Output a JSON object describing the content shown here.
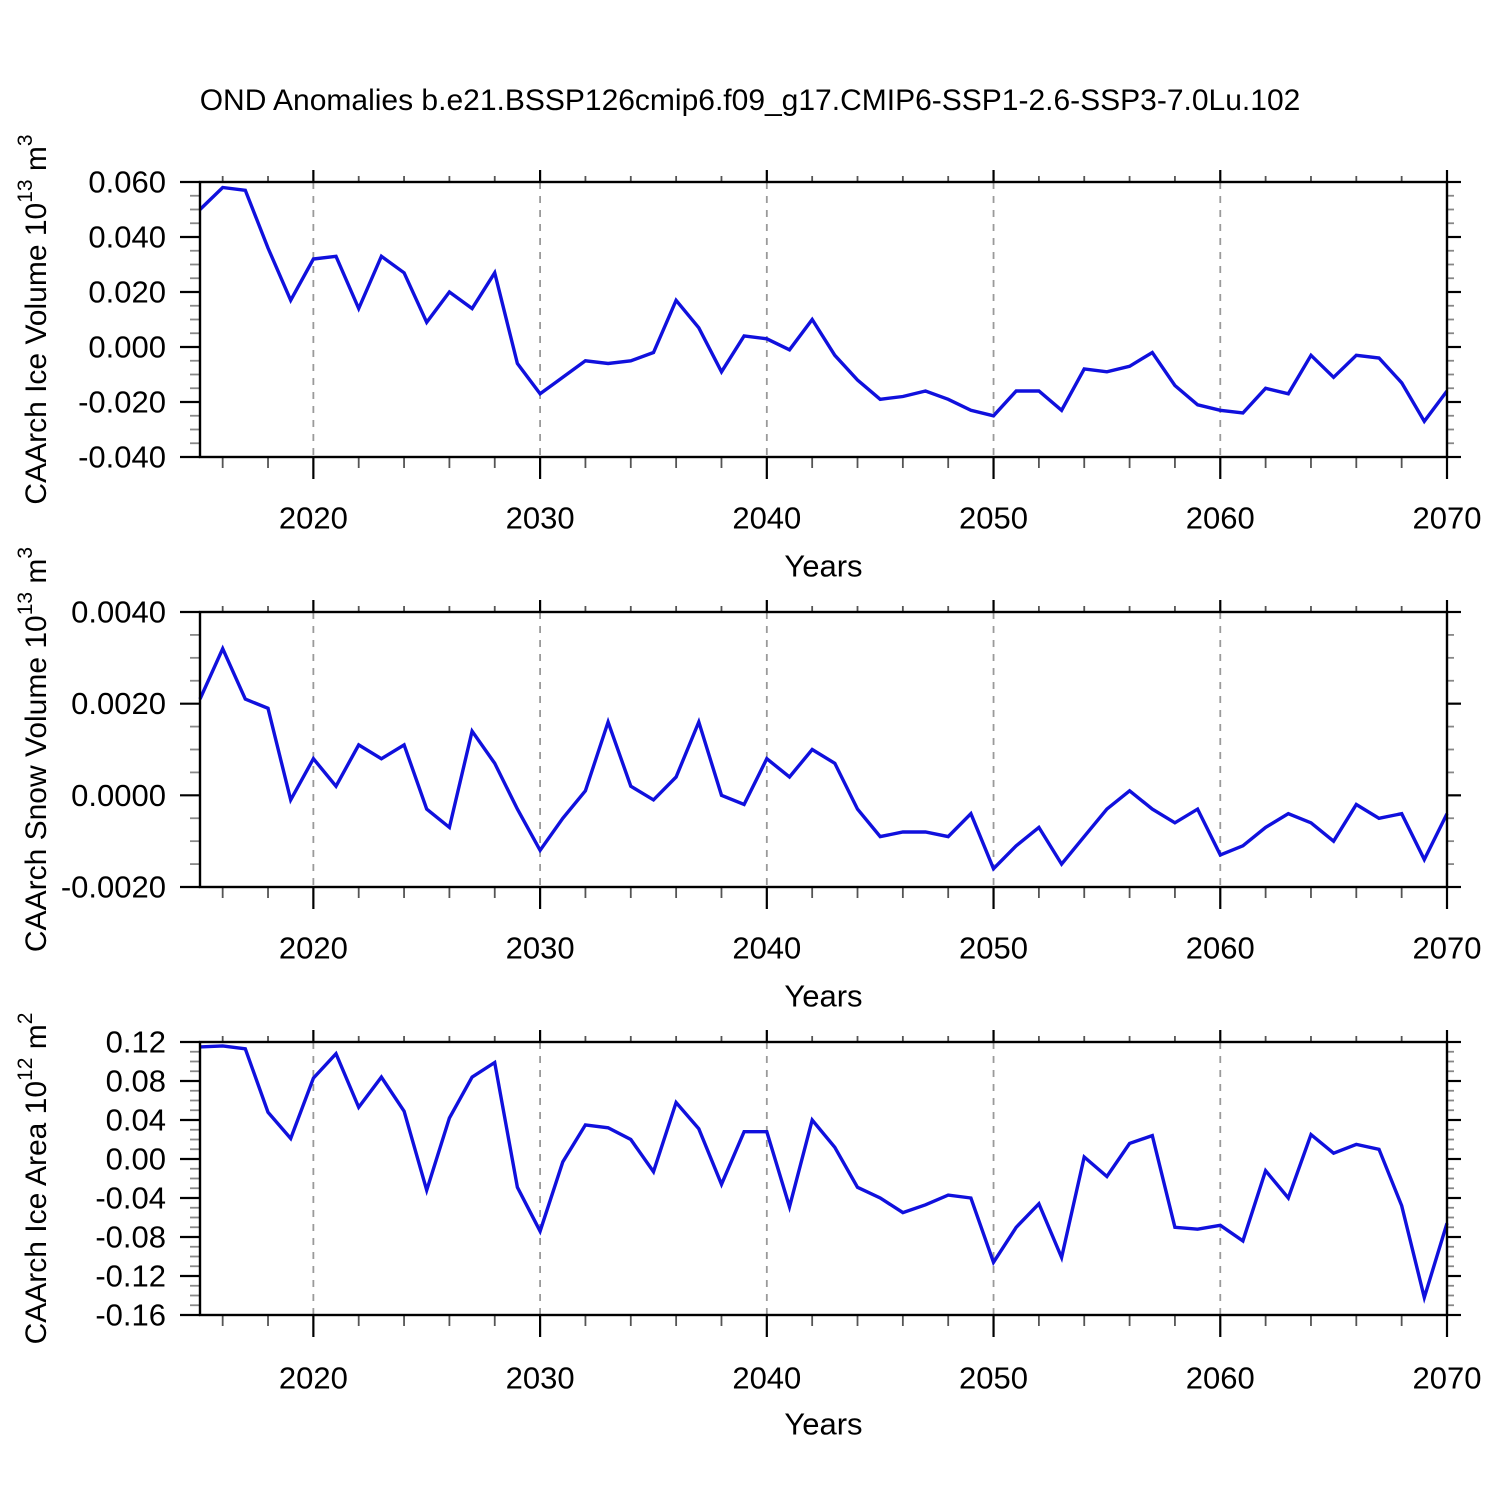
{
  "title": "OND Anomalies b.e21.BSSP126cmip6.f09_g17.CMIP6-SSP1-2.6-SSP3-7.0Lu.102",
  "line_color": "#1010dd",
  "grid_color": "#9a9a9a",
  "years": [
    2015,
    2016,
    2017,
    2018,
    2019,
    2020,
    2021,
    2022,
    2023,
    2024,
    2025,
    2026,
    2027,
    2028,
    2029,
    2030,
    2031,
    2032,
    2033,
    2034,
    2035,
    2036,
    2037,
    2038,
    2039,
    2040,
    2041,
    2042,
    2043,
    2044,
    2045,
    2046,
    2047,
    2048,
    2049,
    2050,
    2051,
    2052,
    2053,
    2054,
    2055,
    2056,
    2057,
    2058,
    2059,
    2060,
    2061,
    2062,
    2063,
    2064,
    2065,
    2066,
    2067,
    2068,
    2069,
    2070
  ],
  "x_axis": {
    "label": "Years",
    "range": [
      2015,
      2070
    ],
    "ticks": [
      2020,
      2030,
      2040,
      2050,
      2060,
      2070
    ],
    "tick_labels": [
      "2020",
      "2030",
      "2040",
      "2050",
      "2060",
      "2070"
    ],
    "minor_step": 2,
    "gridlines": [
      2020,
      2030,
      2040,
      2050,
      2060
    ]
  },
  "chart_data": [
    {
      "type": "line",
      "name": "ice-volume",
      "ylabel_parts": [
        {
          "text": "CAArch Ice Volume 10"
        },
        {
          "text": "13",
          "sup": true
        },
        {
          "text": " m"
        },
        {
          "text": "3",
          "sup": true
        }
      ],
      "ylim": [
        -0.04,
        0.06
      ],
      "yticks": [
        0.06,
        0.04,
        0.02,
        0.0,
        -0.02,
        -0.04
      ],
      "ytick_labels": [
        "0.060",
        "0.040",
        "0.020",
        "0.000",
        "-0.020",
        "-0.040"
      ],
      "y_minor_step": 0.005,
      "values": [
        0.05,
        0.058,
        0.057,
        0.036,
        0.017,
        0.032,
        0.033,
        0.014,
        0.033,
        0.027,
        0.009,
        0.02,
        0.014,
        0.027,
        -0.006,
        -0.017,
        -0.011,
        -0.005,
        -0.006,
        -0.005,
        -0.002,
        0.017,
        0.007,
        -0.009,
        0.004,
        0.003,
        -0.001,
        0.01,
        -0.003,
        -0.012,
        -0.019,
        -0.018,
        -0.016,
        -0.019,
        -0.023,
        -0.025,
        -0.016,
        -0.016,
        -0.023,
        -0.008,
        -0.009,
        -0.007,
        -0.002,
        -0.014,
        -0.021,
        -0.023,
        -0.024,
        -0.015,
        -0.017,
        -0.003,
        -0.011,
        -0.003,
        -0.004,
        -0.013,
        -0.027,
        -0.016
      ]
    },
    {
      "type": "line",
      "name": "snow-volume",
      "ylabel_parts": [
        {
          "text": "CAArch Snow Volume 10"
        },
        {
          "text": "13",
          "sup": true
        },
        {
          "text": " m"
        },
        {
          "text": "3",
          "sup": true
        }
      ],
      "ylim": [
        -0.002,
        0.004
      ],
      "yticks": [
        0.004,
        0.002,
        0.0,
        -0.002
      ],
      "ytick_labels": [
        "0.0040",
        "0.0020",
        "0.0000",
        "-0.0020"
      ],
      "y_minor_step": 0.0005,
      "values": [
        0.0021,
        0.0032,
        0.0021,
        0.0019,
        -0.0001,
        0.0008,
        0.0002,
        0.0011,
        0.0008,
        0.0011,
        -0.0003,
        -0.0007,
        0.0014,
        0.0007,
        -0.0003,
        -0.0012,
        -0.0005,
        0.0001,
        0.0016,
        0.0002,
        -0.0001,
        0.0004,
        0.0016,
        0.0,
        -0.0002,
        0.0008,
        0.0004,
        0.001,
        0.0007,
        -0.0003,
        -0.0009,
        -0.0008,
        -0.0008,
        -0.0009,
        -0.0004,
        -0.0016,
        -0.0011,
        -0.0007,
        -0.0015,
        -0.0009,
        -0.0003,
        0.0001,
        -0.0003,
        -0.0006,
        -0.0003,
        -0.0013,
        -0.0011,
        -0.0007,
        -0.0004,
        -0.0006,
        -0.001,
        -0.0002,
        -0.0005,
        -0.0004,
        -0.0014,
        -0.0004
      ]
    },
    {
      "type": "line",
      "name": "ice-area",
      "ylabel_parts": [
        {
          "text": "CAArch Ice Area 10"
        },
        {
          "text": "12",
          "sup": true
        },
        {
          "text": " m"
        },
        {
          "text": "2",
          "sup": true
        }
      ],
      "ylim": [
        -0.16,
        0.12
      ],
      "yticks": [
        0.12,
        0.08,
        0.04,
        0.0,
        -0.04,
        -0.08,
        -0.12,
        -0.16
      ],
      "ytick_labels": [
        "0.12",
        "0.08",
        "0.04",
        "0.00",
        "-0.04",
        "-0.08",
        "-0.12",
        "-0.16"
      ],
      "y_minor_step": 0.01,
      "values": [
        0.115,
        0.116,
        0.113,
        0.048,
        0.021,
        0.083,
        0.108,
        0.053,
        0.084,
        0.049,
        -0.032,
        0.042,
        0.084,
        0.099,
        -0.029,
        -0.074,
        -0.003,
        0.035,
        0.032,
        0.02,
        -0.013,
        0.058,
        0.031,
        -0.026,
        0.028,
        0.028,
        -0.049,
        0.04,
        0.012,
        -0.029,
        -0.04,
        -0.055,
        -0.047,
        -0.037,
        -0.04,
        -0.106,
        -0.07,
        -0.046,
        -0.101,
        0.002,
        -0.018,
        0.016,
        0.024,
        -0.07,
        -0.072,
        -0.068,
        -0.084,
        -0.012,
        -0.04,
        0.025,
        0.006,
        0.015,
        0.01,
        -0.048,
        -0.142,
        -0.066
      ]
    }
  ]
}
